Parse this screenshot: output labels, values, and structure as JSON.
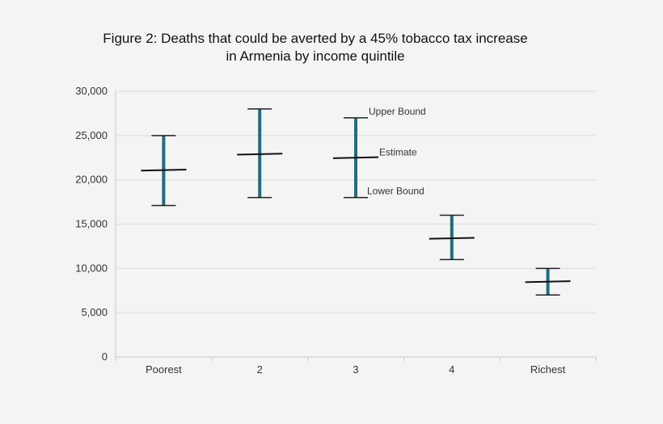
{
  "chart_data": {
    "type": "errorbar",
    "title_lines": [
      "Figure 2: Deaths that could be averted by a 45% tobacco tax increase",
      "in Armenia by income quintile"
    ],
    "xlabel": "",
    "ylabel": "",
    "categories": [
      "Poorest",
      "2",
      "3",
      "4",
      "Richest"
    ],
    "estimates": [
      21100,
      22900,
      22500,
      13400,
      8500
    ],
    "upper_bounds": [
      25000,
      28000,
      27000,
      16000,
      10000
    ],
    "lower_bounds": [
      17100,
      18000,
      18000,
      11000,
      7000
    ],
    "ylim": [
      0,
      30000
    ],
    "yticks": [
      0,
      5000,
      10000,
      15000,
      20000,
      25000,
      30000
    ],
    "ytick_labels": [
      "0",
      "5,000",
      "10,000",
      "15,000",
      "20,000",
      "25,000",
      "30,000"
    ],
    "grid": true,
    "annotations": {
      "upper": "Upper Bound",
      "estimate": "Estimate",
      "lower": "Lower Bound",
      "category": "3"
    },
    "colors": {
      "error_bar": "#1d6f7f",
      "estimate_line": "#111111",
      "cap_line": "#222222",
      "grid": "#dddddd"
    }
  }
}
